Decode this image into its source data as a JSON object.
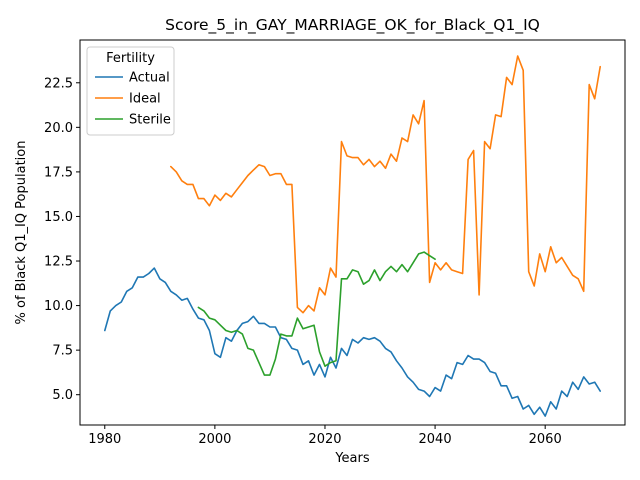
{
  "chart_data": {
    "type": "line",
    "title": "Score_5_in_GAY_MARRIAGE_OK_for_Black_Q1_IQ",
    "xlabel": "Years",
    "ylabel": "% of Black Q1_IQ Population",
    "xlim": [
      1975.5,
      2074.5
    ],
    "ylim": [
      3.3,
      24.9
    ],
    "xticks": [
      1980,
      2000,
      2020,
      2040,
      2060
    ],
    "yticks": [
      5.0,
      7.5,
      10.0,
      12.5,
      15.0,
      17.5,
      20.0,
      22.5
    ],
    "ytick_labels": [
      "5.0",
      "7.5",
      "10.0",
      "12.5",
      "15.0",
      "17.5",
      "20.0",
      "22.5"
    ],
    "legend": {
      "title": "Fertility",
      "placement": "top-left"
    },
    "series": [
      {
        "name": "Actual",
        "color": "#1f77b4",
        "x": [
          1980,
          1981,
          1982,
          1983,
          1984,
          1985,
          1986,
          1987,
          1988,
          1989,
          1990,
          1991,
          1992,
          1993,
          1994,
          1995,
          1996,
          1997,
          1998,
          1999,
          2000,
          2001,
          2002,
          2003,
          2004,
          2005,
          2006,
          2007,
          2008,
          2009,
          2010,
          2011,
          2012,
          2013,
          2014,
          2015,
          2016,
          2017,
          2018,
          2019,
          2020,
          2021,
          2022,
          2023,
          2024,
          2025,
          2026,
          2027,
          2028,
          2029,
          2030,
          2031,
          2032,
          2033,
          2034,
          2035,
          2036,
          2037,
          2038,
          2039,
          2040,
          2041,
          2042,
          2043,
          2044,
          2045,
          2046,
          2047,
          2048,
          2049,
          2050,
          2051,
          2052,
          2053,
          2054,
          2055,
          2056,
          2057,
          2058,
          2059,
          2060,
          2061,
          2062,
          2063,
          2064,
          2065,
          2066,
          2067,
          2068,
          2069,
          2070
        ],
        "values": [
          8.6,
          9.7,
          10.0,
          10.2,
          10.8,
          11.0,
          11.6,
          11.6,
          11.8,
          12.1,
          11.5,
          11.3,
          10.8,
          10.6,
          10.3,
          10.4,
          9.8,
          9.3,
          9.2,
          8.6,
          7.3,
          7.1,
          8.2,
          8.0,
          8.6,
          9.0,
          9.1,
          9.4,
          9.0,
          9.0,
          8.8,
          8.8,
          8.2,
          8.1,
          7.6,
          7.5,
          6.7,
          6.9,
          6.1,
          6.7,
          6.0,
          7.1,
          6.5,
          7.6,
          7.2,
          8.1,
          7.9,
          8.2,
          8.1,
          8.2,
          8.0,
          7.6,
          7.4,
          6.9,
          6.5,
          6.0,
          5.7,
          5.3,
          5.2,
          4.9,
          5.4,
          5.2,
          6.1,
          5.9,
          6.8,
          6.7,
          7.2,
          7.0,
          7.0,
          6.8,
          6.3,
          6.2,
          5.5,
          5.5,
          4.8,
          4.9,
          4.2,
          4.4,
          3.9,
          4.3,
          3.8,
          4.6,
          4.2,
          5.2,
          4.9,
          5.7,
          5.3,
          6.0,
          5.6,
          5.7,
          5.2
        ]
      },
      {
        "name": "Ideal",
        "color": "#ff7f0e",
        "x": [
          1992,
          1993,
          1994,
          1995,
          1996,
          1997,
          1998,
          1999,
          2000,
          2001,
          2002,
          2003,
          2004,
          2005,
          2006,
          2007,
          2008,
          2009,
          2010,
          2011,
          2012,
          2013,
          2014,
          2015,
          2016,
          2017,
          2018,
          2019,
          2020,
          2021,
          2022,
          2023,
          2024,
          2025,
          2026,
          2027,
          2028,
          2029,
          2030,
          2031,
          2032,
          2033,
          2034,
          2035,
          2036,
          2037,
          2038,
          2039,
          2040,
          2041,
          2042,
          2043,
          2044,
          2045,
          2046,
          2047,
          2048,
          2049,
          2050,
          2051,
          2052,
          2053,
          2054,
          2055,
          2056,
          2057,
          2058,
          2059,
          2060,
          2061,
          2062,
          2063,
          2064,
          2065,
          2066,
          2067,
          2068,
          2069,
          2070
        ],
        "values": [
          17.8,
          17.5,
          17.0,
          16.8,
          16.8,
          16.0,
          16.0,
          15.6,
          16.2,
          15.9,
          16.3,
          16.1,
          16.5,
          16.9,
          17.3,
          17.6,
          17.9,
          17.8,
          17.3,
          17.4,
          17.4,
          16.8,
          16.8,
          9.9,
          9.6,
          10.0,
          9.7,
          11.0,
          10.6,
          12.1,
          11.6,
          19.2,
          18.4,
          18.3,
          18.3,
          17.9,
          18.2,
          17.8,
          18.1,
          17.7,
          18.5,
          18.1,
          19.4,
          19.2,
          20.7,
          20.2,
          21.5,
          11.3,
          12.4,
          12.0,
          12.4,
          12.0,
          11.9,
          11.8,
          18.2,
          18.7,
          10.6,
          19.2,
          18.8,
          20.7,
          20.6,
          22.8,
          22.4,
          24.0,
          23.2,
          11.9,
          11.1,
          12.9,
          11.9,
          13.3,
          12.4,
          12.7,
          12.2,
          11.7,
          11.5,
          10.8,
          22.4,
          21.6,
          23.4
        ]
      },
      {
        "name": "Sterile",
        "color": "#2ca02c",
        "x": [
          1997,
          1998,
          1999,
          2000,
          2001,
          2002,
          2003,
          2004,
          2005,
          2006,
          2007,
          2008,
          2009,
          2010,
          2011,
          2012,
          2013,
          2014,
          2015,
          2016,
          2017,
          2018,
          2019,
          2020,
          2021,
          2022,
          2023,
          2024,
          2025,
          2026,
          2027,
          2028,
          2029,
          2030,
          2031,
          2032,
          2033,
          2034,
          2035,
          2036,
          2037,
          2038,
          2039,
          2040
        ],
        "values": [
          9.9,
          9.7,
          9.3,
          9.2,
          8.9,
          8.6,
          8.5,
          8.6,
          8.4,
          7.6,
          7.5,
          6.8,
          6.1,
          6.1,
          7.0,
          8.4,
          8.3,
          8.3,
          9.3,
          8.7,
          8.8,
          8.9,
          7.4,
          6.6,
          6.8,
          6.9,
          11.5,
          11.5,
          12.0,
          11.9,
          11.2,
          11.4,
          12.0,
          11.4,
          11.9,
          12.2,
          11.9,
          12.3,
          11.9,
          12.4,
          12.9,
          13.0,
          12.8,
          12.6
        ]
      }
    ]
  }
}
